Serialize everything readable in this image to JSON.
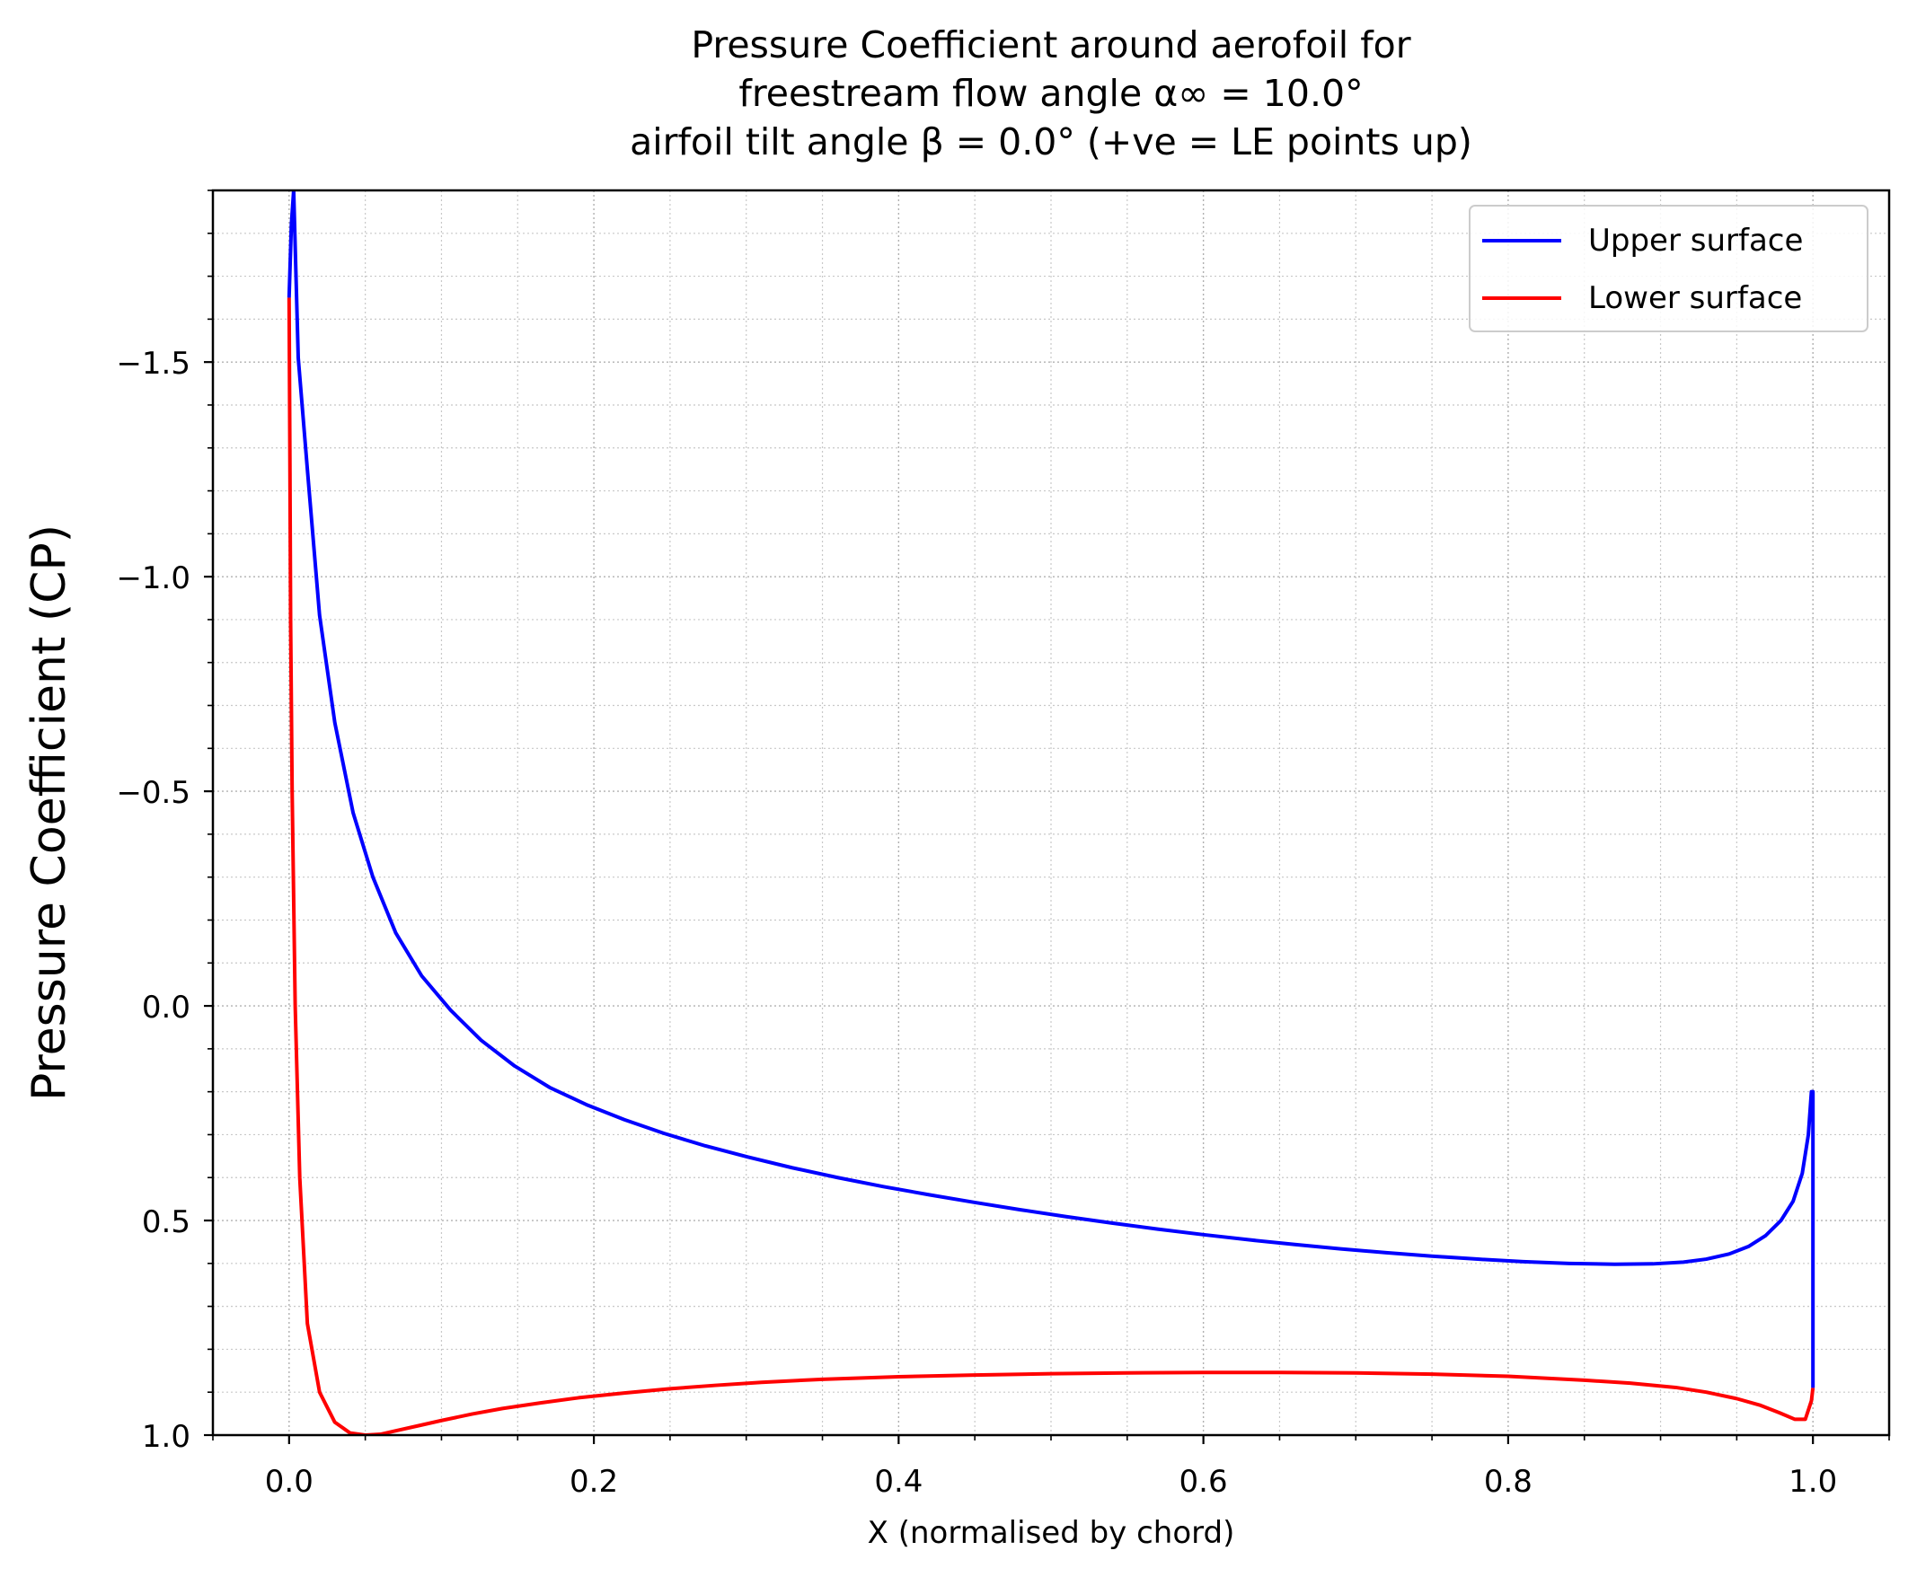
{
  "chart_data": {
    "type": "line",
    "title_lines": [
      "Pressure Coefficient around aerofoil for",
      "freestream flow angle α∞ = 10.0°",
      "airfoil tilt angle β = 0.0° (+ve = LE points up)"
    ],
    "xlabel": "X (normalised by chord)",
    "ylabel": "Pressure Coefficient (CP)",
    "xlim": [
      -0.05,
      1.05
    ],
    "ylim": [
      1.0,
      -1.9
    ],
    "y_inverted": true,
    "x_ticks": [
      "0.0",
      "0.2",
      "0.4",
      "0.6",
      "0.8",
      "1.0"
    ],
    "y_ticks": [
      "−1.5",
      "−1.0",
      "−0.5",
      "0.0",
      "0.5",
      "1.0"
    ],
    "grid": true,
    "minor_grid": true,
    "legend_position": "top-right",
    "series": [
      {
        "name": "Upper surface",
        "color": "#0000ff",
        "x": [
          0.0,
          0.0015,
          0.003,
          0.006,
          0.012,
          0.02,
          0.03,
          0.042,
          0.055,
          0.07,
          0.087,
          0.106,
          0.126,
          0.148,
          0.171,
          0.195,
          0.22,
          0.246,
          0.273,
          0.301,
          0.33,
          0.36,
          0.39,
          0.42,
          0.45,
          0.48,
          0.51,
          0.54,
          0.57,
          0.6,
          0.63,
          0.66,
          0.69,
          0.72,
          0.75,
          0.78,
          0.81,
          0.84,
          0.87,
          0.895,
          0.915,
          0.93,
          0.945,
          0.958,
          0.969,
          0.979,
          0.987,
          0.993,
          0.997,
          0.999,
          1.0,
          1.0
        ],
        "y": [
          -1.65,
          -1.82,
          -1.9,
          -1.51,
          -1.25,
          -0.91,
          -0.66,
          -0.45,
          -0.3,
          -0.17,
          -0.07,
          0.01,
          0.08,
          0.14,
          0.19,
          0.23,
          0.265,
          0.297,
          0.326,
          0.352,
          0.377,
          0.4,
          0.421,
          0.44,
          0.458,
          0.475,
          0.491,
          0.506,
          0.52,
          0.533,
          0.545,
          0.556,
          0.566,
          0.575,
          0.583,
          0.59,
          0.596,
          0.6,
          0.602,
          0.601,
          0.597,
          0.59,
          0.578,
          0.56,
          0.535,
          0.5,
          0.455,
          0.39,
          0.3,
          0.2,
          0.2,
          0.89
        ]
      },
      {
        "name": "Lower surface",
        "color": "#ff0000",
        "x": [
          0.0,
          0.0005,
          0.001,
          0.002,
          0.004,
          0.007,
          0.012,
          0.02,
          0.03,
          0.04,
          0.05,
          0.06,
          0.07,
          0.085,
          0.1,
          0.12,
          0.14,
          0.165,
          0.19,
          0.22,
          0.25,
          0.28,
          0.31,
          0.35,
          0.4,
          0.45,
          0.5,
          0.55,
          0.6,
          0.65,
          0.7,
          0.75,
          0.8,
          0.85,
          0.88,
          0.91,
          0.93,
          0.95,
          0.965,
          0.978,
          0.988,
          0.995,
          0.999,
          1.0
        ],
        "y": [
          -1.65,
          -1.3,
          -0.9,
          -0.5,
          0.0,
          0.4,
          0.74,
          0.9,
          0.97,
          0.995,
          1.0,
          0.998,
          0.99,
          0.978,
          0.966,
          0.951,
          0.938,
          0.925,
          0.913,
          0.902,
          0.892,
          0.884,
          0.877,
          0.87,
          0.864,
          0.86,
          0.857,
          0.855,
          0.854,
          0.854,
          0.855,
          0.858,
          0.863,
          0.872,
          0.879,
          0.889,
          0.9,
          0.915,
          0.93,
          0.948,
          0.963,
          0.963,
          0.92,
          0.89
        ]
      }
    ]
  }
}
